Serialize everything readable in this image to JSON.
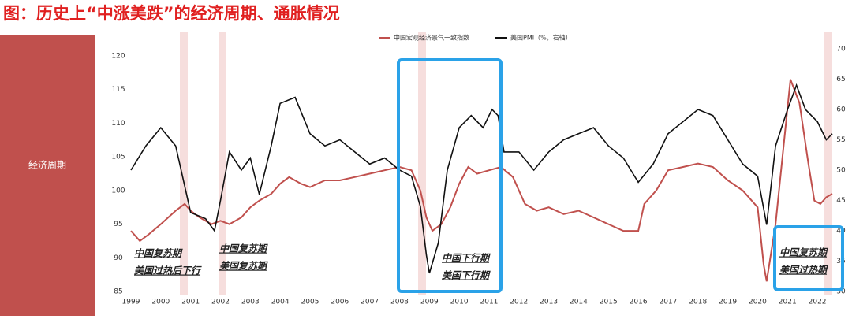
{
  "chart_data": {
    "type": "line",
    "title": "图：历史上“中涨美跌”的经济周期、通胀情况",
    "panel_label": "经济周期",
    "xlim": [
      1999,
      2022.5
    ],
    "xticks": [
      1999,
      2000,
      2001,
      2002,
      2003,
      2004,
      2005,
      2006,
      2007,
      2008,
      2009,
      2010,
      2011,
      2012,
      2013,
      2014,
      2015,
      2016,
      2017,
      2018,
      2019,
      2020,
      2021,
      2022
    ],
    "ylim": [
      85,
      120
    ],
    "yticks": [
      85,
      90,
      95,
      100,
      105,
      110,
      115,
      120
    ],
    "y2lim": [
      30,
      70
    ],
    "y2ticks": [
      30,
      35,
      40,
      45,
      50,
      55,
      60,
      65,
      70
    ],
    "series": [
      {
        "name": "中国宏观经济景气一致指数",
        "color": "#c0504d",
        "x": [
          1999.0,
          1999.3,
          1999.6,
          2000.0,
          2000.5,
          2000.8,
          2001.0,
          2001.3,
          2001.7,
          2002.0,
          2002.3,
          2002.7,
          2003.0,
          2003.3,
          2003.7,
          2004.0,
          2004.3,
          2004.7,
          2005.0,
          2005.5,
          2006.0,
          2006.5,
          2007.0,
          2007.5,
          2008.0,
          2008.4,
          2008.7,
          2008.9,
          2009.1,
          2009.4,
          2009.7,
          2010.0,
          2010.3,
          2010.6,
          2011.0,
          2011.4,
          2011.8,
          2012.2,
          2012.6,
          2013.0,
          2013.5,
          2014.0,
          2014.5,
          2015.0,
          2015.5,
          2016.0,
          2016.2,
          2016.6,
          2017.0,
          2017.5,
          2018.0,
          2018.5,
          2019.0,
          2019.5,
          2020.0,
          2020.2,
          2020.3,
          2020.6,
          2020.9,
          2021.1,
          2021.4,
          2021.7,
          2021.9,
          2022.1,
          2022.3,
          2022.5
        ],
        "values": [
          94,
          92.5,
          93.5,
          95,
          97,
          98,
          97,
          96,
          95,
          95.5,
          95,
          96,
          97.5,
          98.5,
          99.5,
          101,
          102,
          101,
          100.5,
          101.5,
          101.5,
          102,
          102.5,
          103,
          103.5,
          103,
          100,
          96,
          94,
          95,
          97.5,
          101,
          103.5,
          102.5,
          103,
          103.5,
          102,
          98,
          97,
          97.5,
          96.5,
          97,
          96,
          95,
          94,
          94,
          98,
          100,
          103,
          103.5,
          104,
          103.5,
          101.5,
          100,
          97.5,
          89,
          86.5,
          95,
          108,
          116.5,
          113,
          104,
          98.5,
          98,
          99,
          99.5
        ]
      },
      {
        "name": "美国PMI（%，右轴）",
        "color": "#111111",
        "axis": "y2",
        "x": [
          1999.0,
          1999.5,
          2000.0,
          2000.5,
          2001.0,
          2001.5,
          2001.8,
          2002.0,
          2002.3,
          2002.7,
          2003.0,
          2003.3,
          2003.7,
          2004.0,
          2004.5,
          2005.0,
          2005.5,
          2006.0,
          2006.5,
          2007.0,
          2007.5,
          2008.0,
          2008.4,
          2008.7,
          2008.9,
          2009.0,
          2009.3,
          2009.6,
          2010.0,
          2010.4,
          2010.8,
          2011.1,
          2011.3,
          2011.5,
          2012.0,
          2012.5,
          2013.0,
          2013.5,
          2014.0,
          2014.5,
          2015.0,
          2015.5,
          2016.0,
          2016.5,
          2017.0,
          2017.5,
          2018.0,
          2018.5,
          2019.0,
          2019.5,
          2020.0,
          2020.3,
          2020.6,
          2021.0,
          2021.3,
          2021.6,
          2022.0,
          2022.3,
          2022.5
        ],
        "values": [
          50,
          54,
          57,
          54,
          43,
          42,
          40,
          45,
          53,
          50,
          52,
          46,
          54,
          61,
          62,
          56,
          54,
          55,
          53,
          51,
          52,
          50,
          49,
          44,
          36,
          33,
          38,
          50,
          57,
          59,
          57,
          60,
          59,
          53,
          53,
          50,
          53,
          55,
          56,
          57,
          54,
          52,
          48,
          51,
          56,
          58,
          60,
          59,
          55,
          51,
          49,
          41,
          54,
          60,
          64,
          60,
          58,
          55,
          56
        ]
      }
    ],
    "annotations": [
      [
        "中国复苏期",
        "美国过热后下行"
      ],
      [
        "中国复苏期",
        "美国复苏期"
      ],
      [
        "中国下行期",
        "美国下行期"
      ],
      [
        "中国复苏期",
        "美国过热期"
      ]
    ]
  }
}
